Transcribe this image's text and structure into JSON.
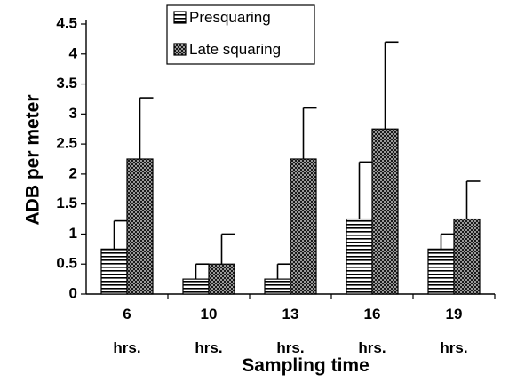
{
  "chart_data": {
    "type": "bar",
    "title": "",
    "xlabel": "Sampling time",
    "ylabel": "ADB per meter",
    "ylim": [
      0,
      4.5
    ],
    "yticks": [
      "0",
      "0.5",
      "1",
      "1.5",
      "2",
      "2.5",
      "3",
      "3.5",
      "4",
      "4.5"
    ],
    "categories": [
      {
        "value": "6",
        "unit": "hrs."
      },
      {
        "value": "10",
        "unit": "hrs."
      },
      {
        "value": "13",
        "unit": "hrs."
      },
      {
        "value": "16",
        "unit": "hrs."
      },
      {
        "value": "19",
        "unit": "hrs."
      }
    ],
    "series": [
      {
        "name": "Presquaring",
        "pattern": "horizontal-stripes",
        "values": [
          0.75,
          0.25,
          0.25,
          1.25,
          0.75
        ],
        "error_upper": [
          1.22,
          0.5,
          0.5,
          2.2,
          1.0
        ]
      },
      {
        "name": "Late squaring",
        "pattern": "dotted",
        "values": [
          2.25,
          0.5,
          2.25,
          2.75,
          1.25
        ],
        "error_upper": [
          3.27,
          1.0,
          3.1,
          4.2,
          1.88
        ]
      }
    ],
    "legend": "top-center",
    "grid": false,
    "colors": {
      "bars": "#ffffff",
      "outline": "#000000"
    }
  }
}
